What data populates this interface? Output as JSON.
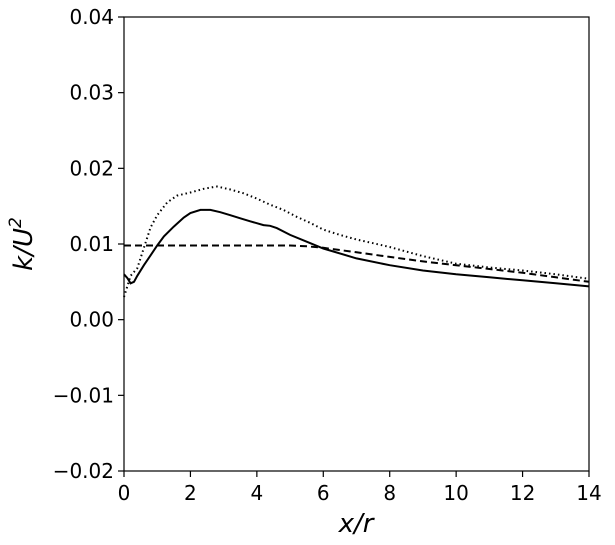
{
  "chart_data": {
    "type": "line",
    "xlabel": "x/r",
    "ylabel_base": "k/U",
    "ylabel_sup": "2",
    "xlim": [
      0,
      14
    ],
    "ylim": [
      -0.02,
      0.04
    ],
    "xticks": [
      0,
      2,
      4,
      6,
      8,
      10,
      12,
      14
    ],
    "xtick_labels": [
      "0",
      "2",
      "4",
      "6",
      "8",
      "10",
      "12",
      "14"
    ],
    "yticks": [
      -0.02,
      -0.01,
      0.0,
      0.01,
      0.02,
      0.03,
      0.04
    ],
    "ytick_labels": [
      "−0.02",
      "−0.01",
      "0.00",
      "0.01",
      "0.02",
      "0.03",
      "0.04"
    ],
    "grid": false,
    "series": [
      {
        "style": "solid",
        "color": "#000000",
        "x": [
          0,
          0.1,
          0.2,
          0.3,
          0.4,
          0.6,
          0.8,
          1.0,
          1.2,
          1.5,
          1.8,
          2.0,
          2.3,
          2.6,
          2.9,
          3.2,
          3.5,
          3.8,
          4.2,
          4.4,
          4.6,
          5.0,
          5.5,
          6.0,
          7.0,
          8.0,
          9.0,
          10.0,
          11.0,
          12.0,
          13.0,
          14.0
        ],
        "y": [
          0.006,
          0.0055,
          0.0048,
          0.005,
          0.0058,
          0.0072,
          0.0085,
          0.0098,
          0.011,
          0.0123,
          0.0135,
          0.0141,
          0.0145,
          0.0145,
          0.0142,
          0.0138,
          0.0134,
          0.013,
          0.0125,
          0.0124,
          0.0121,
          0.0112,
          0.0103,
          0.0094,
          0.0081,
          0.0072,
          0.0065,
          0.006,
          0.0056,
          0.0052,
          0.0048,
          0.0044
        ]
      },
      {
        "style": "dotted",
        "color": "#000000",
        "x": [
          0,
          0.2,
          0.4,
          0.6,
          0.8,
          1.0,
          1.3,
          1.6,
          2.0,
          2.4,
          2.8,
          3.2,
          3.6,
          4.0,
          4.4,
          4.8,
          5.2,
          5.6,
          6.0,
          6.5,
          7.0,
          7.5,
          8.0,
          9.0,
          10.0,
          11.0,
          12.0,
          13.0,
          14.0
        ],
        "y": [
          0.003,
          0.0058,
          0.0068,
          0.0095,
          0.0122,
          0.0138,
          0.0155,
          0.0164,
          0.0168,
          0.0173,
          0.0176,
          0.0172,
          0.0167,
          0.016,
          0.0152,
          0.0145,
          0.0136,
          0.0128,
          0.0119,
          0.0112,
          0.0106,
          0.0101,
          0.0096,
          0.0084,
          0.0074,
          0.0069,
          0.0065,
          0.006,
          0.0054
        ]
      },
      {
        "style": "dashed",
        "color": "#000000",
        "x": [
          0,
          1,
          2,
          3,
          4,
          5,
          5.5,
          6,
          7,
          8,
          9,
          10,
          11,
          12,
          13,
          14
        ],
        "y": [
          0.0098,
          0.0098,
          0.0098,
          0.0098,
          0.0098,
          0.0098,
          0.0097,
          0.0095,
          0.0089,
          0.0083,
          0.0077,
          0.0072,
          0.0067,
          0.0062,
          0.0056,
          0.005
        ]
      }
    ]
  }
}
